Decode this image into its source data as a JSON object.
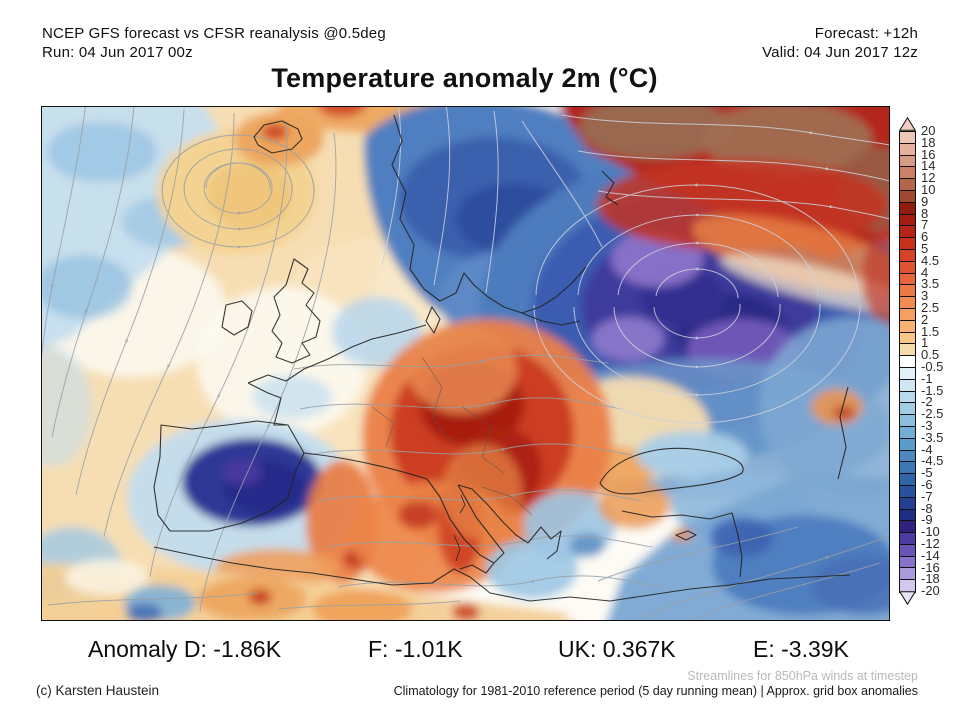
{
  "header": {
    "model_line": "NCEP GFS forecast vs CFSR reanalysis @0.5deg",
    "run_line": "Run: 04 Jun 2017 00z",
    "forecast_line": "Forecast: +12h",
    "valid_line": "Valid: 04 Jun 2017 12z"
  },
  "title": "Temperature anomaly 2m (°C)",
  "anomaly_line": {
    "d": "Anomaly D: -1.86K",
    "f": "F: -1.01K",
    "uk": "UK: 0.367K",
    "e": "E: -3.39K"
  },
  "footer": {
    "credit": "(c) Karsten Haustein",
    "streamline_note": "Streamlines for 850hPa winds at timestep",
    "climatology_note": "Climatology for 1981-2010 reference period (5 day running mean) | Approx. grid box anomalies"
  },
  "colorbar": {
    "tick_labels": [
      "20",
      "18",
      "16",
      "14",
      "12",
      "10",
      "9",
      "8",
      "7",
      "6",
      "5",
      "4.5",
      "4",
      "3.5",
      "3",
      "2.5",
      "2",
      "1.5",
      "1",
      "0.5",
      "-0.5",
      "-1",
      "-1.5",
      "-2",
      "-2.5",
      "-3",
      "-3.5",
      "-4",
      "-4.5",
      "-5",
      "-6",
      "-7",
      "-8",
      "-9",
      "-10",
      "-12",
      "-14",
      "-16",
      "-18",
      "-20"
    ],
    "cell_colors": [
      "#efc5b5",
      "#e6b09c",
      "#d99a83",
      "#ca8168",
      "#b4664b",
      "#9d4a31",
      "#8f1d10",
      "#a31d10",
      "#b72415",
      "#c9311b",
      "#d54226",
      "#de5330",
      "#e6653c",
      "#ec7847",
      "#f18b53",
      "#f59f62",
      "#f8b274",
      "#fac68a",
      "#f7dcab",
      "#ffffff",
      "#e4f0f8",
      "#cfe6f3",
      "#b9daee",
      "#a2cde6",
      "#8abfde",
      "#72aed5",
      "#5c9cca",
      "#4c89c0",
      "#3d77b5",
      "#3165aa",
      "#28529e",
      "#223f92",
      "#1f2e85",
      "#31217c",
      "#4c3a9e",
      "#6a55b6",
      "#8873c9",
      "#ab9adc",
      "#d2c7ef"
    ],
    "over_color": "#f2d0c4",
    "under_color": "#e9e2f8"
  },
  "chart_data": {
    "type": "map",
    "variable": "Temperature anomaly 2m (°C)",
    "model_comparison": "NCEP GFS forecast vs CFSR reanalysis @0.5deg",
    "run": "04 Jun 2017 00z",
    "forecast_hour": "+12h",
    "valid": "04 Jun 2017 12z",
    "region": "Europe / North Atlantic",
    "colorbar_range": [
      -20,
      20
    ],
    "colorbar_boundaries": [
      20,
      18,
      16,
      14,
      12,
      10,
      9,
      8,
      7,
      6,
      5,
      4.5,
      4,
      3.5,
      3,
      2.5,
      2,
      1.5,
      1,
      0.5,
      -0.5,
      -1,
      -1.5,
      -2,
      -2.5,
      -3,
      -3.5,
      -4,
      -4.5,
      -5,
      -6,
      -7,
      -8,
      -9,
      -10,
      -12,
      -14,
      -16,
      -18,
      -20
    ],
    "regional_mean_anomalies_K": {
      "D": -1.86,
      "F": -1.01,
      "UK": 0.367,
      "E": -3.39
    },
    "overlay": "Streamlines for 850hPa winds at timestep",
    "reference": "Climatology for 1981-2010 reference period (5 day running mean)"
  }
}
